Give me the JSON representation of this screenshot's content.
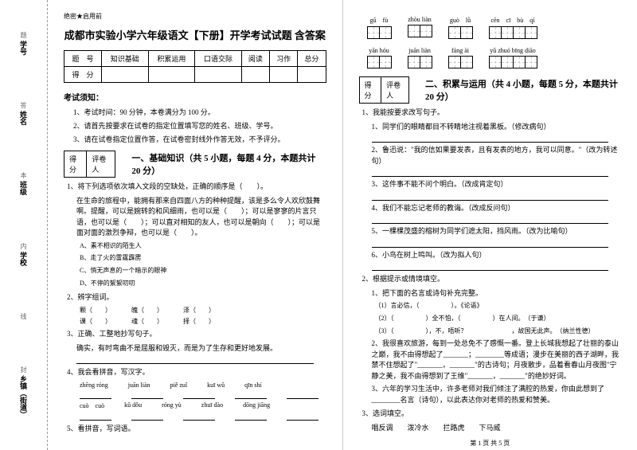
{
  "binding": {
    "items": [
      {
        "label": "学号",
        "dash": "题"
      },
      {
        "label": "姓名",
        "dash": "答"
      },
      {
        "label": "班级",
        "dash": "本"
      },
      {
        "label": "学校",
        "dash": "内"
      },
      {
        "label": "",
        "dash": "线"
      },
      {
        "label": "乡镇（街道）",
        "dash": "封"
      }
    ]
  },
  "secret": "绝密★启用前",
  "title": "成都市实验小学六年级语文【下册】开学考试试题 含答案",
  "score_table": {
    "headers": [
      "题　号",
      "知识基础",
      "积累运用",
      "口语交际",
      "阅读",
      "习作",
      "总分"
    ],
    "row_label": "得　分"
  },
  "notice": {
    "title": "考试须知：",
    "items": [
      "1、考试时间：90 分钟，本卷满分为 100 分。",
      "2、请首先按要求在试卷的指定位置填写您的姓名、班级、学号。",
      "3、请在试卷指定位置作答，在试卷密封线外作答无效，不予评分。"
    ]
  },
  "score_box": {
    "c1": "得分",
    "c2": "评卷人"
  },
  "section1": {
    "title": "一、基础知识（共 5 小题，每题 4 分，本题共计 20 分）",
    "q1": "1、将下列选项依次填入文段的空缺处，正确的顺序是（　　）。",
    "q1_text": "在生命的旅程中，能拥有那来自四面八方的种种提醒，该是多么令人欢欣鼓舞啊。提醒，可以是婉转的和风细雨，也可以是（　　）；可以是寥寥的片言只语，也可以是（　　）；可以直对相知的友人，也可以是朝向（　　）；可以是面对面的激烈争辩，也可以是（　　）。",
    "q1_opts": [
      "A、素不相识的陌生人",
      "B、走了火的雷霆霹雳",
      "C、悄无声息的一个暗示的眼神",
      "D、不停的絮絮叨叨"
    ],
    "q2": "2、辨字组词。",
    "q2_rows": [
      [
        "颗（　　）",
        "魄（　　）",
        "泽（　　）"
      ],
      [
        "课（　　）",
        "魂（　　）",
        "择（　　）"
      ]
    ],
    "q3": "3、正确、工整地抄写句子。",
    "q3_text": "确实，有时弯曲不是屈服和毁灭，而是为了生存和更好地发展。",
    "q4": "4、我会看拼音，写汉字。",
    "q4_rows": [
      [
        "zhēng róng",
        "juān liàn",
        "piě zuǐ",
        "kuī wǔ",
        "qīn shí"
      ],
      [
        "cuò　cuò",
        "kǔ dǒu",
        "róng yù",
        "zhuī dào",
        "dōng jiāng"
      ]
    ],
    "q5": "5、看拼音，写词语。"
  },
  "char_grids": {
    "row1": [
      {
        "pinyin": "gū　fù",
        "n": 2
      },
      {
        "pinyin": "zhòu liàn",
        "n": 2
      },
      {
        "pinyin": "guò　lǜ",
        "n": 2
      },
      {
        "pinyin": "cēn　cī　bù　qí",
        "n": 4
      }
    ],
    "row2": [
      {
        "pinyin": "yān hóu",
        "n": 2
      },
      {
        "pinyin": "juān liàn",
        "n": 2
      },
      {
        "pinyin": "fáng ài",
        "n": 2
      },
      {
        "pinyin": "yǔ zhuó bīng diāo",
        "n": 4
      }
    ]
  },
  "section2": {
    "title": "二、积累与运用（共 4 小题，每题 5 分，本题共计 20 分）",
    "q1": "1、我能按要求改写句子。",
    "q1_items": [
      "1、同学们的眼睛都目不转睛地注视着黑板。（修改病句）",
      "2、鲁迅说：\"我的信如果要发表，且有发表的地方，我可以同意。\"（改为转述句）",
      "3、这件事不能不问个明白。（改成肯定句）",
      "4、我们不能忘记老师的教诲。（改成反问句）",
      "5、一棵棵茂盛的榕树为同学们遮太阳，挡风雨。（改为比喻句）",
      "6、小鸟在树上鸣叫。（改为拟人句）"
    ],
    "q2": "2、根据提示或情境填空。",
    "q2_1": "1、把下面的名言或诗句补充完整。",
    "q2_1_items": [
      "（1）言必信，（　　　　　）。《论语》",
      "（2）（　　　　　）全不怕，（　　　　　）在人间。　（于谦）",
      "（3）（　　　　　），不，唔听？　　　　　　　，故国无此声。　（纳兰性德）"
    ],
    "q2_2": "2、我很喜欢旅游，每到一处总免不了感慨一番。登上长城我想起了壮丽的泰山之巅，我不由得想起了_______；________等成语；漫步在美丽的西子湖畔，我禁不住想起了\"_______，_______\"的古诗句；月夜散步，品着看春山月夜图\"宁静之美，我不由得想到了王维\"_______，_______\"的绝妙好词。",
    "q2_3": "3、六年的学习生活中，许多老师对我们倾注了满腔的热爱，你由此想到了________名言（诗句），以此表达你对老师的热爱和赞美。",
    "q3": "3、选词填空。",
    "q3_words": "唱反调　　泼冷水　　拦路虎　　下马威"
  },
  "footer": "第 1 页 共 5 页"
}
